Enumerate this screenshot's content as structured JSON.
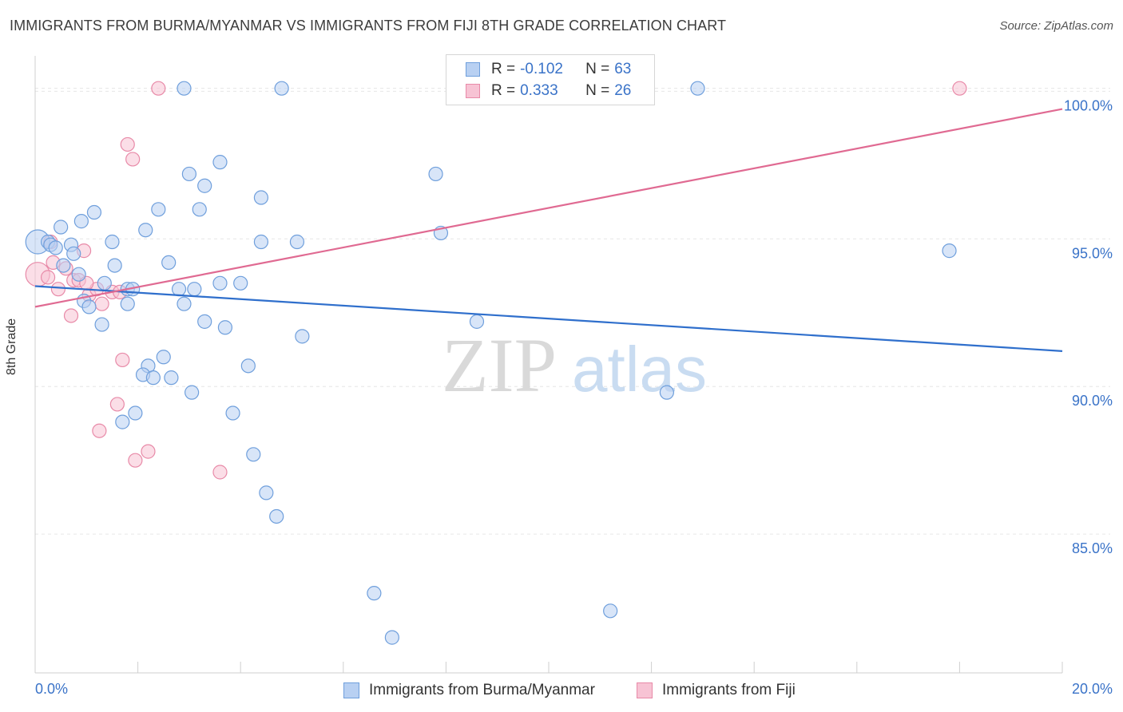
{
  "title": "IMMIGRANTS FROM BURMA/MYANMAR VS IMMIGRANTS FROM FIJI 8TH GRADE CORRELATION CHART",
  "source": "Source: ZipAtlas.com",
  "watermark": {
    "zip": "ZIP",
    "atlas": "atlas"
  },
  "colors": {
    "burma_fill": "#b8d0f2",
    "burma_stroke": "#6f9fdc",
    "burma_line": "#2f6fcc",
    "fiji_fill": "#f7c3d4",
    "fiji_stroke": "#e88aa8",
    "fiji_line": "#e06a92",
    "tick_label": "#3a73c8"
  },
  "legend_top": [
    {
      "r_label": "R =",
      "r_value": "-0.102",
      "n_label": "N =",
      "n_value": "63"
    },
    {
      "r_label": "R =",
      "r_value": "0.333",
      "n_label": "N =",
      "n_value": "26"
    }
  ],
  "chart_data": {
    "type": "scatter",
    "title": "IMMIGRANTS FROM BURMA/MYANMAR VS IMMIGRANTS FROM FIJI 8TH GRADE CORRELATION CHART",
    "xlabel": "",
    "ylabel": "8th Grade",
    "xlim": [
      0,
      20
    ],
    "ylim": [
      80.3,
      101.2
    ],
    "x_tick_labels": [
      "0.0%",
      "20.0%"
    ],
    "y_ticks": [
      85,
      90,
      95,
      100
    ],
    "y_tick_labels": [
      "85.0%",
      "90.0%",
      "95.0%",
      "100.0%"
    ],
    "grid": true,
    "legend_position": "bottom",
    "series": [
      {
        "name": "Immigrants from Burma/Myanmar",
        "r": -0.102,
        "n": 63,
        "trend": {
          "x": [
            0,
            20
          ],
          "y": [
            93.4,
            91.2
          ]
        },
        "points": [
          [
            0.05,
            94.9
          ],
          [
            0.25,
            94.9
          ],
          [
            0.3,
            94.8
          ],
          [
            0.5,
            95.4
          ],
          [
            0.7,
            94.8
          ],
          [
            0.4,
            94.7
          ],
          [
            0.75,
            94.5
          ],
          [
            0.55,
            94.1
          ],
          [
            0.9,
            95.6
          ],
          [
            1.15,
            95.9
          ],
          [
            1.5,
            94.9
          ],
          [
            1.55,
            94.1
          ],
          [
            0.85,
            93.8
          ],
          [
            1.35,
            93.5
          ],
          [
            1.8,
            93.3
          ],
          [
            1.9,
            93.3
          ],
          [
            0.95,
            92.9
          ],
          [
            1.05,
            92.7
          ],
          [
            1.8,
            92.8
          ],
          [
            1.3,
            92.1
          ],
          [
            2.15,
            95.3
          ],
          [
            2.4,
            96.0
          ],
          [
            2.6,
            94.2
          ],
          [
            2.8,
            93.3
          ],
          [
            3.1,
            93.3
          ],
          [
            2.9,
            92.8
          ],
          [
            3.3,
            92.2
          ],
          [
            3.7,
            92.0
          ],
          [
            3.6,
            93.5
          ],
          [
            4.0,
            93.5
          ],
          [
            2.5,
            91.0
          ],
          [
            2.2,
            90.7
          ],
          [
            2.1,
            90.4
          ],
          [
            2.3,
            90.3
          ],
          [
            2.65,
            90.3
          ],
          [
            3.05,
            89.8
          ],
          [
            4.15,
            90.7
          ],
          [
            1.95,
            89.1
          ],
          [
            1.7,
            88.8
          ],
          [
            3.85,
            89.1
          ],
          [
            4.25,
            87.7
          ],
          [
            4.5,
            86.4
          ],
          [
            4.7,
            85.6
          ],
          [
            5.2,
            91.7
          ],
          [
            6.6,
            83.0
          ],
          [
            6.95,
            81.5
          ],
          [
            11.2,
            82.4
          ],
          [
            12.3,
            89.8
          ],
          [
            8.6,
            92.2
          ],
          [
            7.9,
            95.2
          ],
          [
            7.8,
            97.2
          ],
          [
            5.1,
            94.9
          ],
          [
            4.4,
            94.9
          ],
          [
            4.4,
            96.4
          ],
          [
            3.6,
            97.6
          ],
          [
            3.3,
            96.8
          ],
          [
            3.2,
            96.0
          ],
          [
            3.0,
            97.2
          ],
          [
            2.9,
            100.1
          ],
          [
            4.8,
            100.1
          ],
          [
            9.95,
            100.1
          ],
          [
            12.9,
            100.1
          ],
          [
            17.8,
            94.6
          ]
        ]
      },
      {
        "name": "Immigrants from Fiji",
        "r": 0.333,
        "n": 26,
        "trend": {
          "x": [
            0,
            20
          ],
          "y": [
            92.7,
            99.4
          ]
        },
        "points": [
          [
            0.05,
            93.8
          ],
          [
            0.25,
            93.7
          ],
          [
            0.35,
            94.2
          ],
          [
            0.45,
            93.3
          ],
          [
            0.6,
            94.0
          ],
          [
            0.75,
            93.6
          ],
          [
            0.85,
            93.6
          ],
          [
            0.95,
            94.6
          ],
          [
            0.7,
            92.4
          ],
          [
            1.05,
            93.1
          ],
          [
            1.2,
            93.3
          ],
          [
            1.3,
            92.8
          ],
          [
            1.5,
            93.2
          ],
          [
            1.65,
            93.2
          ],
          [
            1.7,
            90.9
          ],
          [
            1.6,
            89.4
          ],
          [
            1.25,
            88.5
          ],
          [
            1.95,
            87.5
          ],
          [
            2.2,
            87.8
          ],
          [
            3.6,
            87.1
          ],
          [
            1.8,
            98.2
          ],
          [
            1.9,
            97.7
          ],
          [
            2.4,
            100.1
          ],
          [
            18.0,
            100.1
          ],
          [
            0.3,
            94.9
          ],
          [
            1.0,
            93.5
          ]
        ]
      }
    ]
  },
  "legend_bottom": [
    {
      "label": "Immigrants from Burma/Myanmar"
    },
    {
      "label": "Immigrants from Fiji"
    }
  ]
}
